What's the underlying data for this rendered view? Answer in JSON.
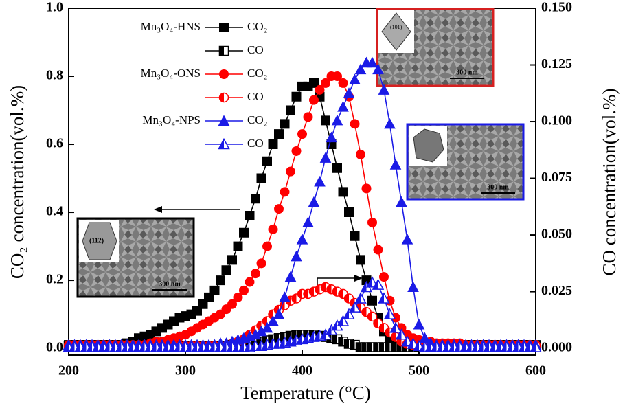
{
  "chart_data": {
    "type": "line",
    "xlabel": "Temperature (°C)",
    "ylabel": "CO₂ concentration(vol.%)",
    "y2label": "CO concentration(vol.%)",
    "xlim": [
      200,
      600
    ],
    "xticks": [
      200,
      300,
      400,
      500,
      600
    ],
    "ylim": [
      -0.02,
      1.0
    ],
    "yticks": [
      {
        "value": 0,
        "label": "0.0"
      },
      0.2,
      0.4,
      0.6,
      0.8,
      {
        "value": 1,
        "label": "1.0"
      }
    ],
    "y2lim": [
      -0.003,
      0.15
    ],
    "y2ticks": [
      {
        "value": 0,
        "label": "0.000"
      },
      0.025,
      {
        "value": 0.05,
        "label": "0.050"
      },
      0.075,
      {
        "value": 0.1,
        "label": "0.100"
      },
      0.125,
      {
        "value": 0.15,
        "label": "0.150"
      }
    ],
    "legend_groups": [
      "Mn₃O₄-HNS",
      "Mn₃O₄-ONS",
      "Mn₃O₄-NPS"
    ],
    "x": [
      200,
      205,
      210,
      215,
      220,
      225,
      230,
      235,
      240,
      245,
      250,
      255,
      260,
      265,
      270,
      275,
      280,
      285,
      290,
      295,
      300,
      305,
      310,
      315,
      320,
      325,
      330,
      335,
      340,
      345,
      350,
      355,
      360,
      365,
      370,
      375,
      380,
      385,
      390,
      395,
      400,
      405,
      410,
      415,
      420,
      425,
      430,
      435,
      440,
      445,
      450,
      455,
      460,
      465,
      470,
      475,
      480,
      485,
      490,
      495,
      500,
      505,
      510,
      515,
      520,
      525,
      530,
      535,
      540,
      545,
      550,
      555,
      560,
      565,
      570,
      575,
      580,
      585,
      590,
      595,
      600
    ],
    "series": [
      {
        "name": "CO₂",
        "color": "#000000",
        "marker": "square",
        "fill": "full",
        "values": [
          0.01,
          0.01,
          0.01,
          0.01,
          0.01,
          0.01,
          0.01,
          0.01,
          0.01,
          0.01,
          0.015,
          0.02,
          0.03,
          0.035,
          0.04,
          0.05,
          0.06,
          0.07,
          0.08,
          0.09,
          0.095,
          0.1,
          0.11,
          0.13,
          0.15,
          0.17,
          0.2,
          0.23,
          0.26,
          0.3,
          0.34,
          0.39,
          0.44,
          0.5,
          0.55,
          0.6,
          0.63,
          0.66,
          0.7,
          0.74,
          0.77,
          0.77,
          0.78,
          0.74,
          0.67,
          0.6,
          0.53,
          0.46,
          0.4,
          0.33,
          0.26,
          0.2,
          0.14,
          0.09,
          0.05,
          0.03,
          0.02,
          0.015,
          0.01,
          0.01,
          0.01,
          0.01,
          0.01,
          0.01,
          0.01,
          0.01,
          0.01,
          0.01,
          0.01,
          0.01,
          0.01,
          0.01,
          0.01,
          0.01,
          0.01,
          0.01,
          0.01,
          0.01,
          0.01,
          0.01,
          0.01
        ]
      },
      {
        "name": "CO",
        "color": "#000000",
        "marker": "square",
        "fill": "half",
        "axis": "y2",
        "values": [
          0.001,
          0.001,
          0.001,
          0.001,
          0.001,
          0.001,
          0.001,
          0.001,
          0.001,
          0.001,
          0.001,
          0.001,
          0.001,
          0.001,
          0.001,
          0.001,
          0.001,
          0.001,
          0.001,
          0.001,
          0.001,
          0.001,
          0.001,
          0.001,
          0.001,
          0.001,
          0.001,
          0.001,
          0.0015,
          0.002,
          0.002,
          0.0025,
          0.003,
          0.003,
          0.0035,
          0.004,
          0.0045,
          0.005,
          0.0055,
          0.006,
          0.006,
          0.006,
          0.006,
          0.0055,
          0.005,
          0.0045,
          0.004,
          0.003,
          0.002,
          0.0015,
          0.0005,
          0.0005,
          0.0005,
          0.0005,
          0.0005,
          0.0005,
          0.0005,
          0.0005,
          0.0005,
          0.0005,
          0.0005,
          0.0005,
          0.0005,
          0.0005,
          0.0005,
          0.0005,
          0.0005,
          0.0005,
          0.0005,
          0.0005,
          0.0005,
          0.0005,
          0.0005,
          0.0005,
          0.0005,
          0.0005,
          0.0005,
          0.0005,
          0.0005,
          0.0005,
          0.0005
        ]
      },
      {
        "name": "CO₂",
        "color": "#ff0000",
        "marker": "circle",
        "fill": "full",
        "values": [
          0.01,
          0.01,
          0.01,
          0.01,
          0.01,
          0.01,
          0.01,
          0.01,
          0.01,
          0.01,
          0.01,
          0.01,
          0.01,
          0.01,
          0.015,
          0.02,
          0.02,
          0.025,
          0.03,
          0.035,
          0.04,
          0.05,
          0.06,
          0.07,
          0.08,
          0.09,
          0.1,
          0.115,
          0.13,
          0.15,
          0.17,
          0.195,
          0.22,
          0.25,
          0.3,
          0.35,
          0.41,
          0.46,
          0.52,
          0.58,
          0.63,
          0.68,
          0.73,
          0.76,
          0.78,
          0.8,
          0.8,
          0.78,
          0.74,
          0.66,
          0.57,
          0.47,
          0.37,
          0.29,
          0.21,
          0.14,
          0.09,
          0.06,
          0.04,
          0.03,
          0.025,
          0.02,
          0.02,
          0.015,
          0.015,
          0.015,
          0.015,
          0.015,
          0.01,
          0.01,
          0.01,
          0.01,
          0.01,
          0.01,
          0.01,
          0.01,
          0.01,
          0.01,
          0.01,
          0.01,
          0.01
        ]
      },
      {
        "name": "CO",
        "color": "#ff0000",
        "marker": "circle",
        "fill": "half",
        "axis": "y2",
        "values": [
          0.001,
          0.001,
          0.001,
          0.001,
          0.001,
          0.001,
          0.001,
          0.001,
          0.001,
          0.001,
          0.001,
          0.001,
          0.001,
          0.001,
          0.001,
          0.001,
          0.001,
          0.001,
          0.001,
          0.001,
          0.001,
          0.001,
          0.001,
          0.001,
          0.001,
          0.001,
          0.001,
          0.001,
          0.002,
          0.003,
          0.004,
          0.006,
          0.008,
          0.01,
          0.012,
          0.015,
          0.017,
          0.019,
          0.021,
          0.022,
          0.024,
          0.024,
          0.025,
          0.026,
          0.027,
          0.026,
          0.025,
          0.024,
          0.022,
          0.02,
          0.018,
          0.016,
          0.014,
          0.011,
          0.009,
          0.007,
          0.005,
          0.003,
          0.002,
          0.0015,
          0.001,
          0.001,
          0.001,
          0.001,
          0.001,
          0.001,
          0.001,
          0.001,
          0.001,
          0.001,
          0.001,
          0.001,
          0.001,
          0.001,
          0.001,
          0.001,
          0.001,
          0.001,
          0.001,
          0.001,
          0.001
        ]
      },
      {
        "name": "CO₂",
        "color": "#1a1ae6",
        "marker": "triangle",
        "fill": "full",
        "values": [
          0.01,
          0.01,
          0.01,
          0.01,
          0.01,
          0.01,
          0.01,
          0.01,
          0.01,
          0.01,
          0.01,
          0.01,
          0.01,
          0.01,
          0.01,
          0.01,
          0.01,
          0.01,
          0.01,
          0.01,
          0.01,
          0.01,
          0.01,
          0.01,
          0.01,
          0.01,
          0.015,
          0.015,
          0.02,
          0.025,
          0.03,
          0.035,
          0.04,
          0.05,
          0.06,
          0.08,
          0.1,
          0.15,
          0.21,
          0.27,
          0.32,
          0.37,
          0.43,
          0.49,
          0.56,
          0.62,
          0.67,
          0.71,
          0.75,
          0.79,
          0.82,
          0.84,
          0.84,
          0.82,
          0.76,
          0.66,
          0.54,
          0.43,
          0.32,
          0.18,
          0.07,
          0.03,
          0.015,
          0.01,
          0.01,
          0.01,
          0.01,
          0.01,
          0.01,
          0.01,
          0.01,
          0.01,
          0.01,
          0.01,
          0.01,
          0.01,
          0.01,
          0.01,
          0.01,
          0.01,
          0.01
        ]
      },
      {
        "name": "CO",
        "color": "#1a1ae6",
        "marker": "triangle",
        "fill": "half",
        "axis": "y2",
        "values": [
          0.0005,
          0.0005,
          0.0005,
          0.0005,
          0.0005,
          0.0005,
          0.0005,
          0.0005,
          0.0005,
          0.0005,
          0.0005,
          0.0005,
          0.0005,
          0.0005,
          0.0005,
          0.0005,
          0.0005,
          0.0005,
          0.0005,
          0.0005,
          0.0005,
          0.0005,
          0.0005,
          0.0005,
          0.0005,
          0.0005,
          0.0005,
          0.0005,
          0.0005,
          0.0005,
          0.0005,
          0.0005,
          0.001,
          0.001,
          0.0015,
          0.002,
          0.002,
          0.0025,
          0.003,
          0.0035,
          0.004,
          0.0045,
          0.005,
          0.0055,
          0.006,
          0.008,
          0.01,
          0.012,
          0.015,
          0.018,
          0.022,
          0.027,
          0.029,
          0.028,
          0.022,
          0.015,
          0.009,
          0.006,
          0.003,
          0.002,
          0.001,
          0.0005,
          0.0005,
          0.0005,
          0.0005,
          0.0005,
          0.0005,
          0.0005,
          0.0005,
          0.0005,
          0.0005,
          0.0005,
          0.0005,
          0.0005,
          0.0005,
          0.0005,
          0.0005,
          0.0005,
          0.0005,
          0.0005,
          0.0005
        ]
      }
    ],
    "insets": [
      {
        "facet": "(101)",
        "scale": "300 nm"
      },
      {
        "facet": "(112)",
        "scale": "300 nm"
      },
      {
        "scale": "300 nm"
      }
    ]
  }
}
